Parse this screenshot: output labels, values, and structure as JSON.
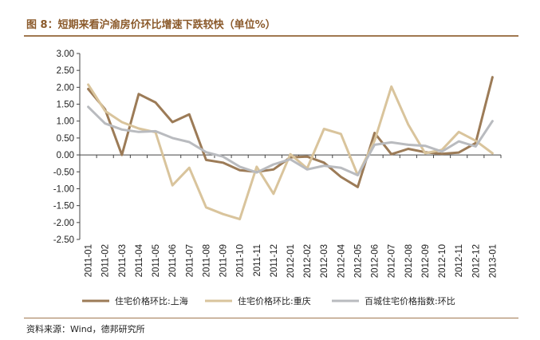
{
  "header": {
    "title": "图 8：短期来看沪渝房价环比增速下跌较快（单位%）"
  },
  "footer": {
    "source": "资料来源：Wind，德邦研究所"
  },
  "chart_data": {
    "type": "line",
    "title": "图 8：短期来看沪渝房价环比增速下跌较快（单位%）",
    "xlabel": "",
    "ylabel": "",
    "ylim": [
      -2.5,
      3.0
    ],
    "yticks": [
      "3.00",
      "2.50",
      "2.00",
      "1.50",
      "1.00",
      "0.50",
      "0.00",
      "-0.50",
      "-1.00",
      "-1.50",
      "-2.00",
      "-2.50"
    ],
    "categories": [
      "2011-01",
      "2011-02",
      "2011-03",
      "2011-04",
      "2011-05",
      "2011-06",
      "2011-07",
      "2011-08",
      "2011-09",
      "2011-10",
      "2011-11",
      "2011-12",
      "2012-01",
      "2012-02",
      "2012-03",
      "2012-04",
      "2012-05",
      "2012-06",
      "2012-07",
      "2012-08",
      "2012-09",
      "2012-10",
      "2012-11",
      "2012-12",
      "2013-01"
    ],
    "grid": false,
    "legend_position": "bottom",
    "series": [
      {
        "name": "住宅价格环比:上海",
        "color": "#9c7b57",
        "values": [
          1.95,
          1.35,
          0.0,
          1.8,
          1.55,
          0.97,
          1.2,
          -0.15,
          -0.23,
          -0.45,
          -0.5,
          -0.43,
          -0.07,
          -0.05,
          -0.23,
          -0.65,
          -0.95,
          0.65,
          0.02,
          0.18,
          0.08,
          0.03,
          0.07,
          0.35,
          2.3
        ]
      },
      {
        "name": "住宅价格环比:重庆",
        "color": "#d9c49c",
        "values": [
          2.08,
          1.3,
          0.97,
          0.78,
          0.67,
          -0.9,
          -0.38,
          -1.55,
          -1.75,
          -1.9,
          -0.35,
          -1.15,
          0.02,
          -0.4,
          0.77,
          0.62,
          -0.6,
          0.42,
          2.02,
          0.9,
          0.05,
          0.15,
          0.68,
          0.42,
          0.05
        ]
      },
      {
        "name": "百城住宅价格指数:环比",
        "color": "#b9bbbf",
        "values": [
          1.42,
          0.93,
          0.75,
          0.68,
          0.7,
          0.5,
          0.38,
          0.08,
          -0.05,
          -0.35,
          -0.52,
          -0.28,
          -0.13,
          -0.43,
          -0.32,
          -0.38,
          -0.6,
          0.3,
          0.37,
          0.3,
          0.27,
          0.1,
          0.4,
          0.25,
          1.0
        ]
      }
    ]
  }
}
